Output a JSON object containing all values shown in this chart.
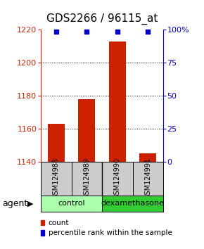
{
  "title": "GDS2266 / 96115_at",
  "samples": [
    "GSM124988",
    "GSM124989",
    "GSM124990",
    "GSM124991"
  ],
  "bar_values": [
    1163,
    1178,
    1213,
    1145
  ],
  "ymin": 1140,
  "ymax": 1220,
  "yticks": [
    1140,
    1160,
    1180,
    1200,
    1220
  ],
  "right_yticks": [
    0,
    25,
    50,
    75,
    100
  ],
  "bar_color": "#cc2200",
  "percentile_color": "#0000cc",
  "groups": [
    {
      "label": "control",
      "samples": [
        0,
        1
      ],
      "color": "#aaffaa"
    },
    {
      "label": "dexamethasone",
      "samples": [
        2,
        3
      ],
      "color": "#33cc33"
    }
  ],
  "group_label": "agent",
  "sample_box_color": "#cccccc",
  "bg_color": "#ffffff",
  "title_fontsize": 11,
  "tick_fontsize": 8,
  "sample_fontsize": 7,
  "group_fontsize": 8,
  "legend_fontsize": 7.5,
  "bar_width": 0.55
}
